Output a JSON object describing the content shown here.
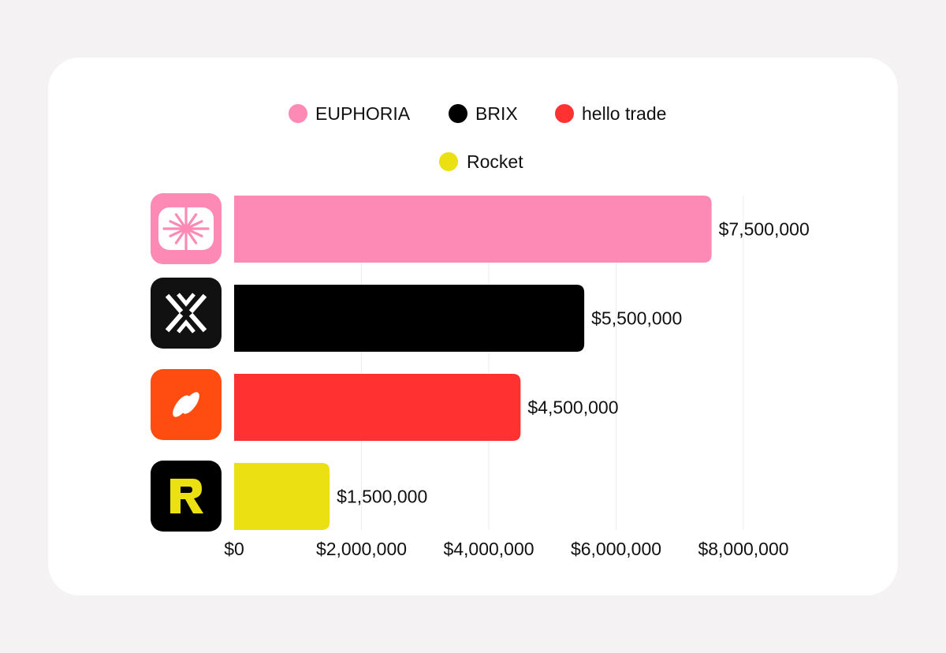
{
  "chart_data": {
    "type": "bar",
    "orientation": "horizontal",
    "categories": [
      "EUPHORIA",
      "BRIX",
      "hello trade",
      "Rocket"
    ],
    "values": [
      7500000,
      5500000,
      4500000,
      1500000
    ],
    "value_labels": [
      "$7,500,000",
      "$5,500,000",
      "$4,500,000",
      "$1,500,000"
    ],
    "colors": [
      "#fd8ab4",
      "#000000",
      "#ff3131",
      "#ebe012"
    ],
    "legend": {
      "placement": "top-center",
      "entries": [
        {
          "label": "EUPHORIA",
          "color": "#fd8ab4"
        },
        {
          "label": "BRIX",
          "color": "#000000"
        },
        {
          "label": "hello trade",
          "color": "#ff3131"
        },
        {
          "label": "Rocket",
          "color": "#ebe012"
        }
      ]
    },
    "category_icons": [
      {
        "name": "euphoria-logo-icon",
        "bg": "#fd8ab4"
      },
      {
        "name": "brix-logo-icon",
        "bg": "#111111"
      },
      {
        "name": "hello-trade-logo-icon",
        "bg": "#ff4d12"
      },
      {
        "name": "rocket-logo-icon",
        "bg": "#000000"
      }
    ],
    "x_ticks": [
      0,
      2000000,
      4000000,
      6000000,
      8000000
    ],
    "x_tick_labels": [
      "$0",
      "$2,000,000",
      "$4,000,000",
      "$6,000,000",
      "$8,000,000"
    ],
    "xlim": [
      0,
      8000000
    ],
    "grid": "vertical"
  }
}
